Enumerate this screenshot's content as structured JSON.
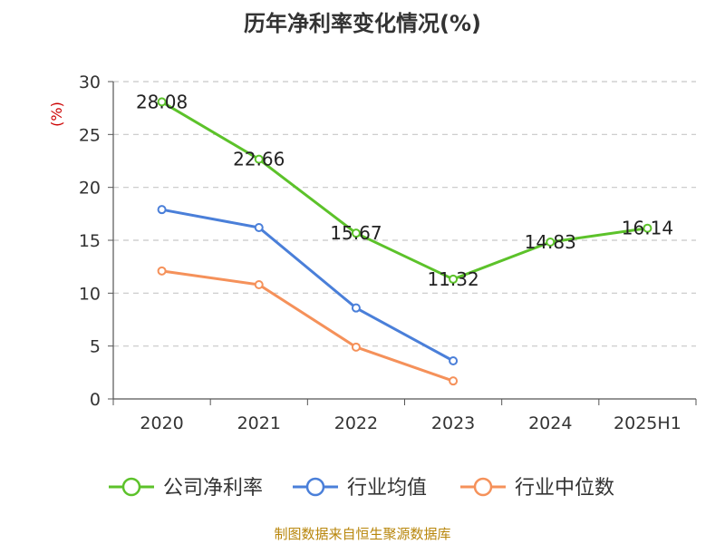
{
  "chart_data": {
    "type": "line",
    "title": "历年净利率变化情况(%)",
    "unit": "(%)",
    "categories": [
      "2020",
      "2021",
      "2022",
      "2023",
      "2024",
      "2025H1"
    ],
    "ylim": [
      0,
      30
    ],
    "yticks": [
      0,
      5,
      10,
      15,
      20,
      25,
      30
    ],
    "grid": true,
    "legend_position": "bottom",
    "series": [
      {
        "name": "公司净利率",
        "color": "#5cc22a",
        "values": [
          28.08,
          22.66,
          15.67,
          11.32,
          14.83,
          16.14
        ],
        "labels": [
          "28.08",
          "22.66",
          "15.67",
          "11.32",
          "14.83",
          "16.14"
        ]
      },
      {
        "name": "行业均值",
        "color": "#4a7fd9",
        "values": [
          17.9,
          16.2,
          8.6,
          3.6,
          null,
          null
        ]
      },
      {
        "name": "行业中位数",
        "color": "#f5915a",
        "values": [
          12.1,
          10.8,
          4.9,
          1.7,
          null,
          null
        ]
      }
    ]
  },
  "source": "制图数据来自恒生聚源数据库"
}
